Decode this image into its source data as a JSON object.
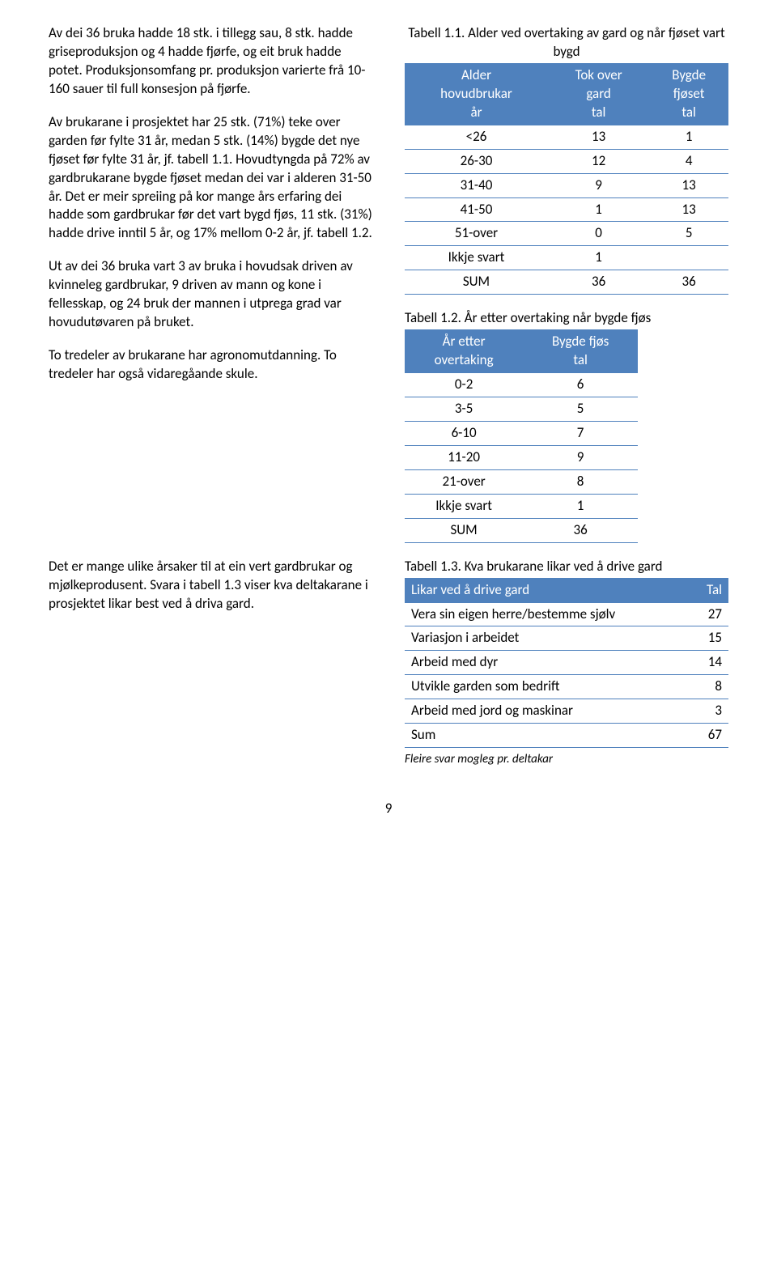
{
  "left": {
    "p1": "Av dei 36 bruka hadde 18 stk. i tillegg sau, 8 stk. hadde griseproduksjon og 4 hadde fjørfe, og eit bruk hadde potet. Produksjonsomfang pr. produksjon varierte frå 10-160 sauer til full konsesjon på fjørfe.",
    "p2": "Av brukarane i prosjektet har 25 stk. (71%) teke over garden før fylte 31 år, medan 5 stk. (14%) bygde det nye fjøset før fylte 31 år, jf. tabell 1.1. Hovudtyngda på 72% av gardbrukarane bygde fjøset medan dei var i alderen 31-50 år. Det er meir spreiing på kor mange års erfaring dei hadde som gardbrukar før det vart bygd fjøs, 11 stk. (31%) hadde drive inntil 5 år, og 17% mellom 0-2 år, jf. tabell 1.2.",
    "p3": "Ut av dei 36 bruka vart 3 av bruka i hovudsak driven av kvinneleg gardbrukar, 9 driven av mann og kone i fellesskap, og 24 bruk der mannen i utprega grad var hovudutøvaren på bruket.",
    "p4": "To tredeler av brukarane har agronomutdanning. To tredeler har også vidaregåande skule.",
    "p5": "Det er mange ulike årsaker til at ein vert gardbrukar og mjølkeprodusent. Svara i tabell 1.3 viser kva deltakarane i prosjektet likar best ved å driva gard."
  },
  "t1": {
    "caption": "Tabell 1.1. Alder ved overtaking av gard og når fjøset vart bygd",
    "h1a": "Alder",
    "h1b": "hovudbrukar",
    "h1c": "år",
    "h2a": "Tok over",
    "h2b": "gard",
    "h2c": "tal",
    "h3a": "Bygde",
    "h3b": "fjøset",
    "h3c": "tal",
    "rows": [
      {
        "a": "<26",
        "b": "13",
        "c": "1"
      },
      {
        "a": "26-30",
        "b": "12",
        "c": "4"
      },
      {
        "a": "31-40",
        "b": "9",
        "c": "13"
      },
      {
        "a": "41-50",
        "b": "1",
        "c": "13"
      },
      {
        "a": "51-over",
        "b": "0",
        "c": "5"
      },
      {
        "a": "Ikkje svart",
        "b": "1",
        "c": ""
      }
    ],
    "sum": {
      "a": "SUM",
      "b": "36",
      "c": "36"
    }
  },
  "t2": {
    "caption": "Tabell 1.2. År etter overtaking når bygde fjøs",
    "h1a": "År etter",
    "h1b": "overtaking",
    "h2a": "Bygde fjøs",
    "h2b": "tal",
    "rows": [
      {
        "a": "0-2",
        "b": "6"
      },
      {
        "a": "3-5",
        "b": "5"
      },
      {
        "a": "6-10",
        "b": "7"
      },
      {
        "a": "11-20",
        "b": "9"
      },
      {
        "a": "21-over",
        "b": "8"
      },
      {
        "a": "Ikkje svart",
        "b": "1"
      }
    ],
    "sum": {
      "a": "SUM",
      "b": "36"
    }
  },
  "t3": {
    "caption": "Tabell 1.3. Kva brukarane likar ved å drive gard",
    "h1": "Likar ved å drive gard",
    "h2": "Tal",
    "rows": [
      {
        "a": "Vera sin eigen herre/bestemme sjølv",
        "b": "27"
      },
      {
        "a": "Variasjon i arbeidet",
        "b": "15"
      },
      {
        "a": "Arbeid med dyr",
        "b": "14"
      },
      {
        "a": "Utvikle garden som bedrift",
        "b": "8"
      },
      {
        "a": "Arbeid med jord og maskinar",
        "b": "3"
      }
    ],
    "sum": {
      "a": "Sum",
      "b": "67"
    },
    "note": "Fleire svar mogleg pr. deltakar"
  },
  "page": "9"
}
